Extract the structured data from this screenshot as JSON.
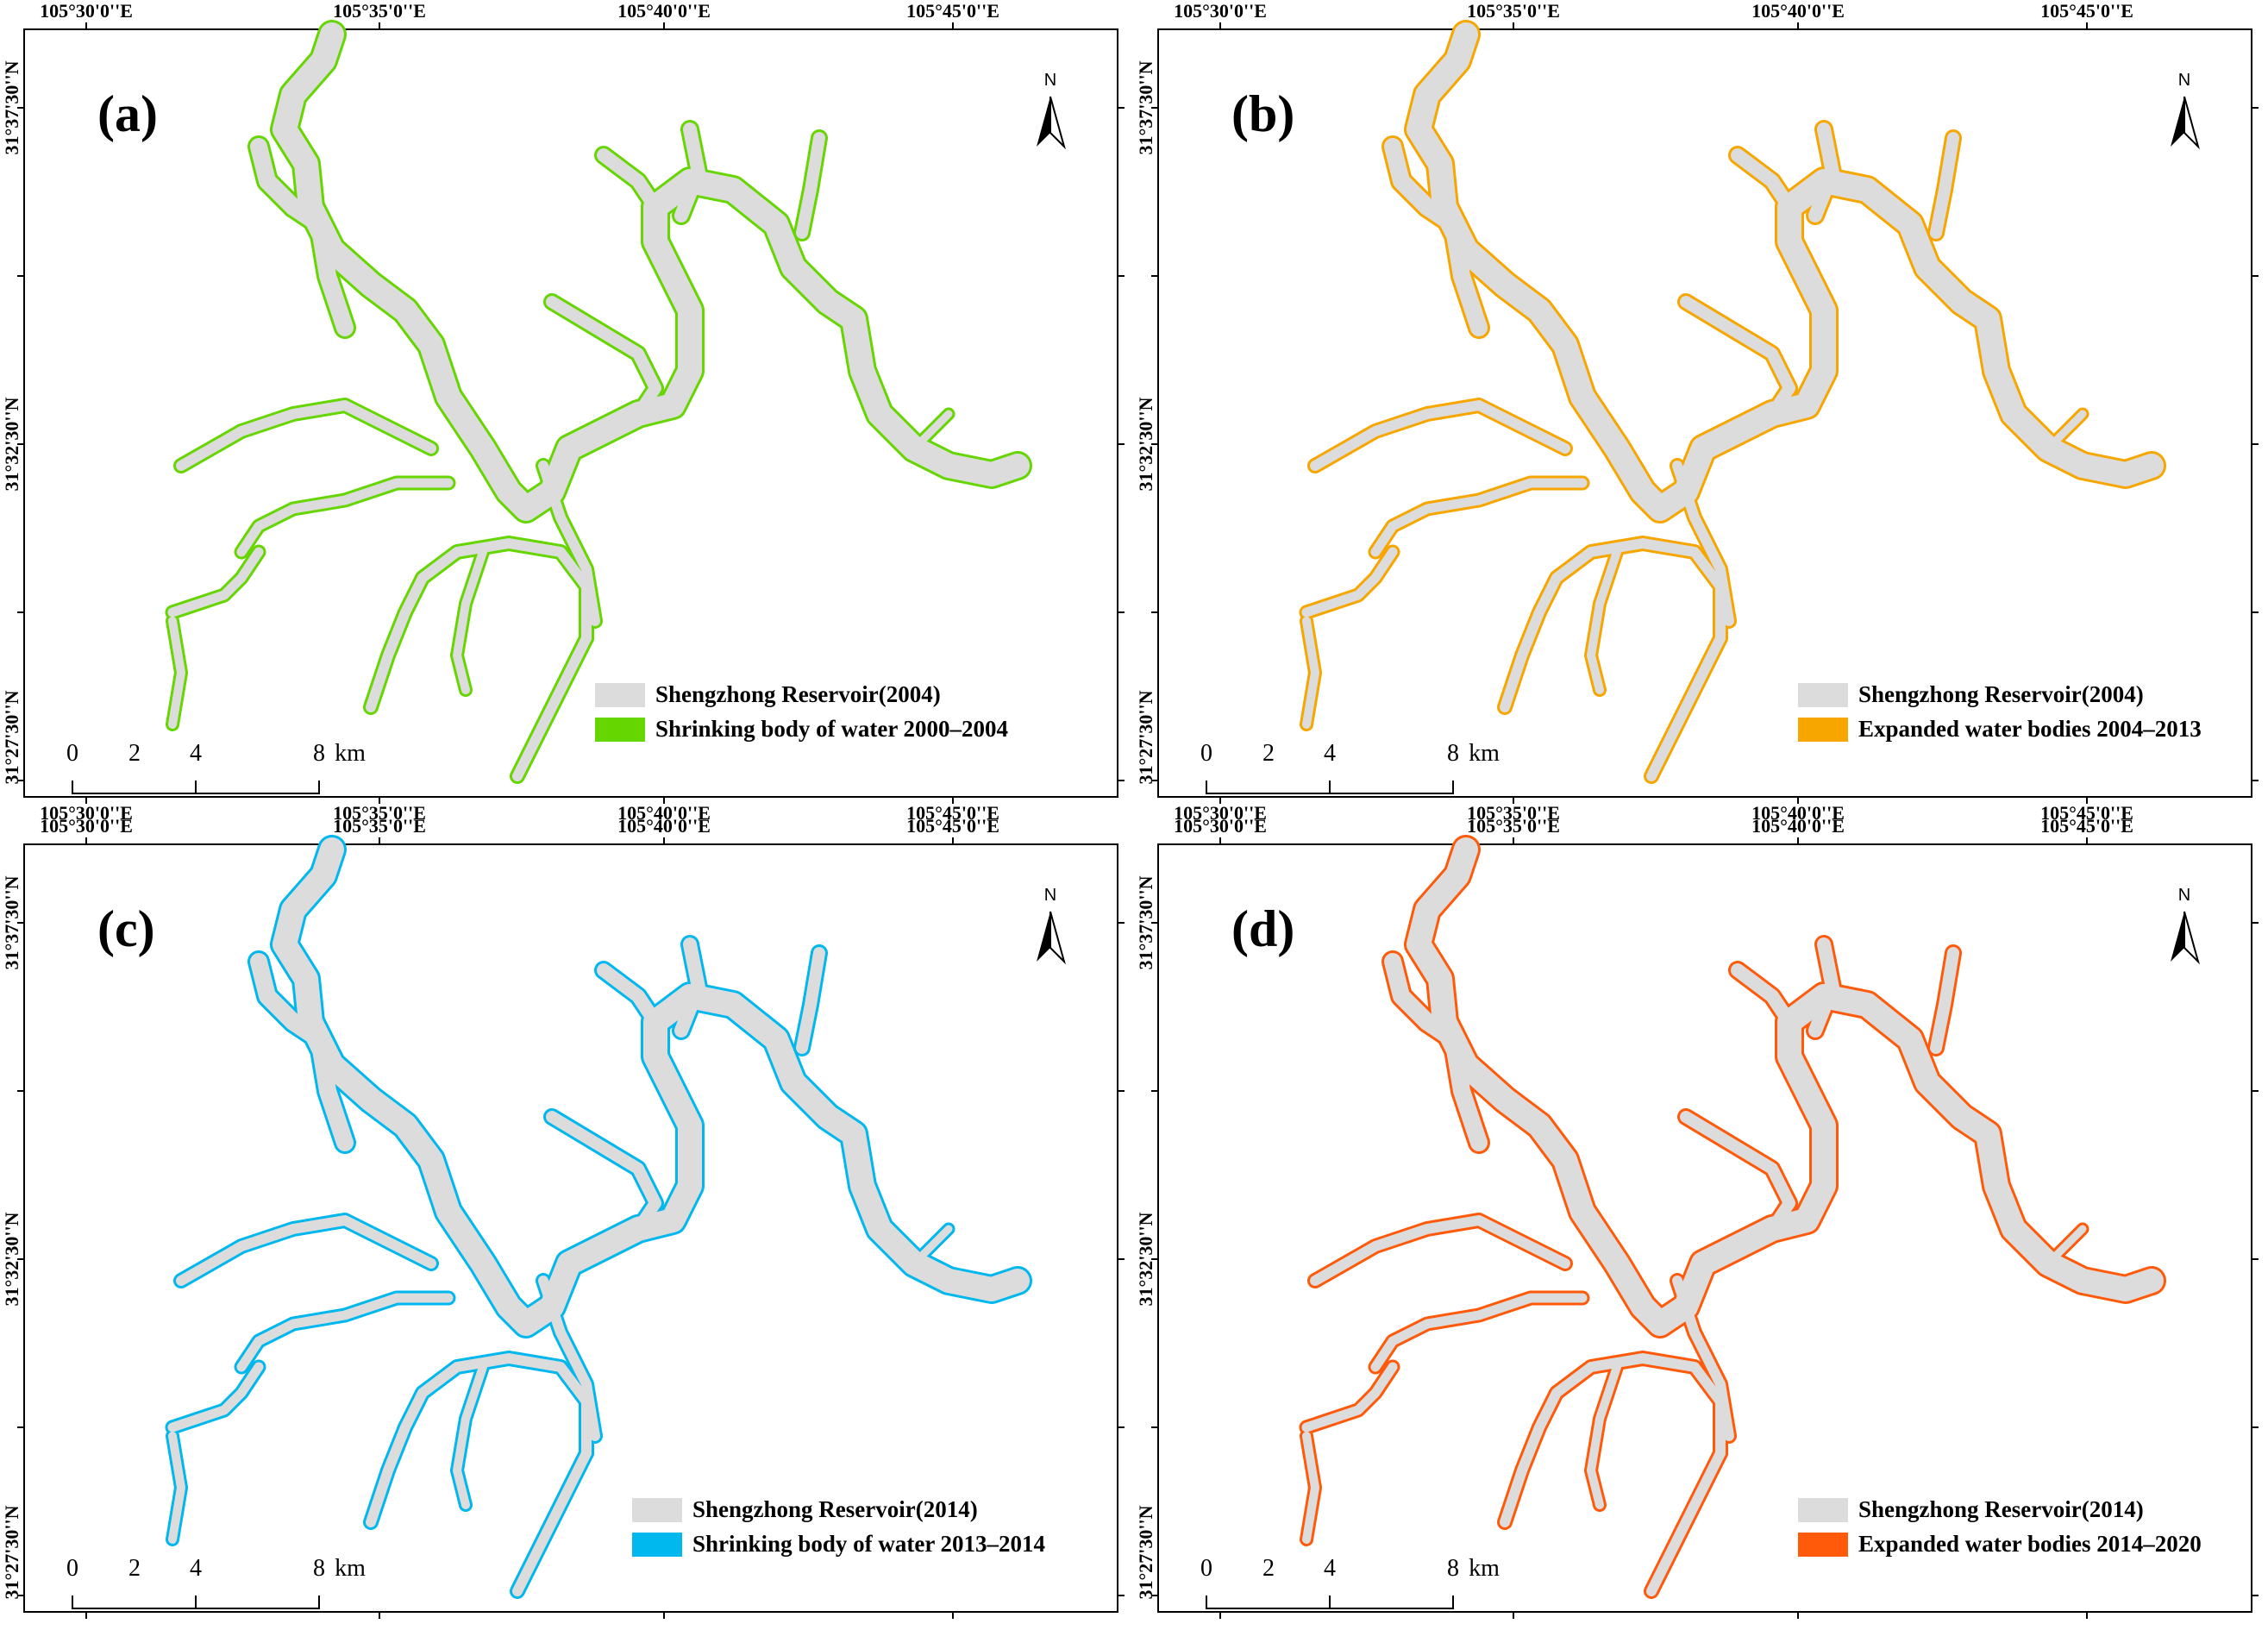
{
  "lon_labels": [
    "105°30'0''E",
    "105°35'0''E",
    "105°40'0''E",
    "105°45'0''E"
  ],
  "lat_labels": [
    "31°37'30''N",
    "31°32'30''N",
    "31°27'30''N"
  ],
  "north_label": "N",
  "scale": {
    "ticks": [
      "0",
      "2",
      "4",
      "8"
    ],
    "unit": "km"
  },
  "colors": {
    "reservoir": "#dcdcdc",
    "a": "#66d600",
    "b": "#f7a600",
    "c": "#00b7ee",
    "d": "#ff5a0a"
  },
  "panels": [
    {
      "id": "a",
      "label": "(a)",
      "legend_reservoir": "Shengzhong Reservoir(2004)",
      "legend_change": "Shrinking body of water 2000–2004"
    },
    {
      "id": "b",
      "label": "(b)",
      "legend_reservoir": "Shengzhong Reservoir(2004)",
      "legend_change": "Expanded water bodies 2004–2013"
    },
    {
      "id": "c",
      "label": "(c)",
      "legend_reservoir": "Shengzhong Reservoir(2014)",
      "legend_change": "Shrinking body of water 2013–2014"
    },
    {
      "id": "d",
      "label": "(d)",
      "legend_reservoir": "Shengzhong Reservoir(2014)",
      "legend_change": "Expanded water bodies 2014–2020"
    }
  ]
}
